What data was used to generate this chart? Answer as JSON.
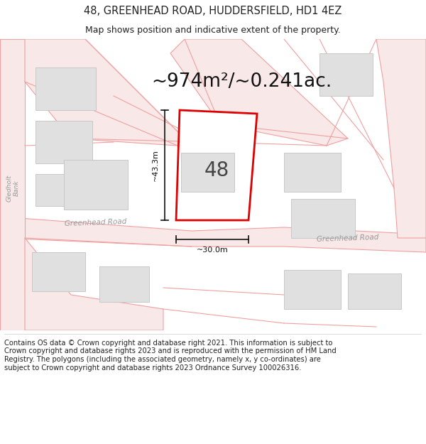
{
  "title": "48, GREENHEAD ROAD, HUDDERSFIELD, HD1 4EZ",
  "subtitle": "Map shows position and indicative extent of the property.",
  "area_text": "~974m²/~0.241ac.",
  "property_number": "48",
  "dim_width": "~30.0m",
  "dim_height": "~43.3m",
  "map_bg": "#ffffff",
  "road_line_color": "#f0a0a0",
  "road_fill_color": "#f8e8e8",
  "building_fill": "#e0e0e0",
  "building_edge": "#c8c8c8",
  "property_edge": "#dd0000",
  "property_fill": "#ffffff",
  "inner_building_fill": "#e0e0e0",
  "inner_building_edge": "#c8c8c8",
  "text_color": "#222222",
  "road_label_color": "#999999",
  "dim_line_color": "#111111",
  "footer_text": "Contains OS data © Crown copyright and database right 2021. This information is subject to Crown copyright and database rights 2023 and is reproduced with the permission of HM Land Registry. The polygons (including the associated geometry, namely x, y co-ordinates) are subject to Crown copyright and database rights 2023 Ordnance Survey 100026316.",
  "title_fontsize": 10.5,
  "subtitle_fontsize": 9,
  "area_fontsize": 19,
  "footer_fontsize": 7.2,
  "road_label_fontsize": 7.5,
  "property_label_fontsize": 20
}
